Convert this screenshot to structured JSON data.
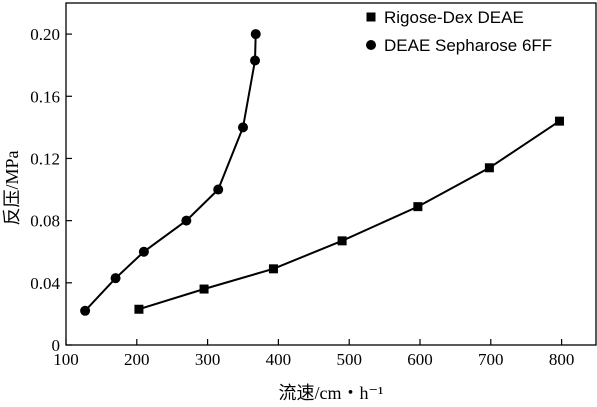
{
  "chart_data": {
    "type": "line",
    "title": "",
    "xlabel": "流速/cm・h⁻¹",
    "ylabel": "反压/MPa",
    "xlim": [
      100,
      850
    ],
    "ylim": [
      0,
      0.22
    ],
    "x_ticks": [
      100,
      200,
      300,
      400,
      500,
      600,
      700,
      800
    ],
    "x_tick_labels": [
      "100",
      "200",
      "300",
      "400",
      "500",
      "600",
      "700",
      "800"
    ],
    "y_ticks": [
      0,
      0.04,
      0.08,
      0.12,
      0.16,
      0.2
    ],
    "y_tick_labels": [
      "0",
      "0.04",
      "0.08",
      "0.12",
      "0.16",
      "0.20"
    ],
    "grid": false,
    "legend_position": "top-right",
    "series": [
      {
        "name": "Rigose-Dex DEAE",
        "marker": "square",
        "color": "#000000",
        "points": [
          {
            "x": 203,
            "y": 0.023
          },
          {
            "x": 295,
            "y": 0.036
          },
          {
            "x": 393,
            "y": 0.049
          },
          {
            "x": 490,
            "y": 0.067
          },
          {
            "x": 597,
            "y": 0.089
          },
          {
            "x": 698,
            "y": 0.114
          },
          {
            "x": 797,
            "y": 0.144
          }
        ]
      },
      {
        "name": "DEAE Sepharose 6FF",
        "marker": "circle",
        "color": "#000000",
        "points": [
          {
            "x": 127,
            "y": 0.022
          },
          {
            "x": 170,
            "y": 0.043
          },
          {
            "x": 210,
            "y": 0.06
          },
          {
            "x": 270,
            "y": 0.08
          },
          {
            "x": 315,
            "y": 0.1
          },
          {
            "x": 350,
            "y": 0.14
          },
          {
            "x": 367,
            "y": 0.183
          },
          {
            "x": 368,
            "y": 0.2
          }
        ]
      }
    ]
  }
}
